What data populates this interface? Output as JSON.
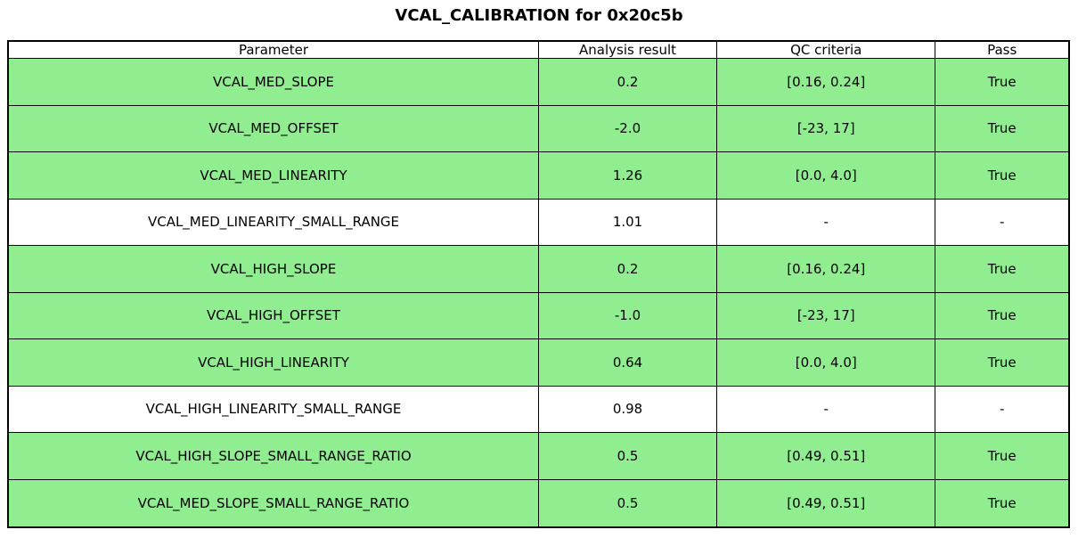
{
  "title": "VCAL_CALIBRATION for 0x20c5b",
  "colors": {
    "pass_row_green": "#90EE90",
    "neutral_row_white": "#FFFFFF",
    "border": "#000000",
    "text": "#000000",
    "background": "#FFFFFF"
  },
  "table": {
    "columns": [
      "Parameter",
      "Analysis result",
      "QC criteria",
      "Pass"
    ],
    "rows": [
      {
        "parameter": "VCAL_MED_SLOPE",
        "analysis_result": "0.2",
        "qc_criteria": "[0.16, 0.24]",
        "pass": "True",
        "highlighted": true
      },
      {
        "parameter": "VCAL_MED_OFFSET",
        "analysis_result": "-2.0",
        "qc_criteria": "[-23, 17]",
        "pass": "True",
        "highlighted": true
      },
      {
        "parameter": "VCAL_MED_LINEARITY",
        "analysis_result": "1.26",
        "qc_criteria": "[0.0, 4.0]",
        "pass": "True",
        "highlighted": true
      },
      {
        "parameter": "VCAL_MED_LINEARITY_SMALL_RANGE",
        "analysis_result": "1.01",
        "qc_criteria": "-",
        "pass": "-",
        "highlighted": false
      },
      {
        "parameter": "VCAL_HIGH_SLOPE",
        "analysis_result": "0.2",
        "qc_criteria": "[0.16, 0.24]",
        "pass": "True",
        "highlighted": true
      },
      {
        "parameter": "VCAL_HIGH_OFFSET",
        "analysis_result": "-1.0",
        "qc_criteria": "[-23, 17]",
        "pass": "True",
        "highlighted": true
      },
      {
        "parameter": "VCAL_HIGH_LINEARITY",
        "analysis_result": "0.64",
        "qc_criteria": "[0.0, 4.0]",
        "pass": "True",
        "highlighted": true
      },
      {
        "parameter": "VCAL_HIGH_LINEARITY_SMALL_RANGE",
        "analysis_result": "0.98",
        "qc_criteria": "-",
        "pass": "-",
        "highlighted": false
      },
      {
        "parameter": "VCAL_HIGH_SLOPE_SMALL_RANGE_RATIO",
        "analysis_result": "0.5",
        "qc_criteria": "[0.49, 0.51]",
        "pass": "True",
        "highlighted": true
      },
      {
        "parameter": "VCAL_MED_SLOPE_SMALL_RANGE_RATIO",
        "analysis_result": "0.5",
        "qc_criteria": "[0.49, 0.51]",
        "pass": "True",
        "highlighted": true
      }
    ]
  },
  "chart_data": {
    "type": "table",
    "title": "VCAL_CALIBRATION for 0x20c5b",
    "columns": [
      "Parameter",
      "Analysis result",
      "QC criteria",
      "Pass"
    ],
    "rows": [
      [
        "VCAL_MED_SLOPE",
        "0.2",
        "[0.16, 0.24]",
        "True"
      ],
      [
        "VCAL_MED_OFFSET",
        "-2.0",
        "[-23, 17]",
        "True"
      ],
      [
        "VCAL_MED_LINEARITY",
        "1.26",
        "[0.0, 4.0]",
        "True"
      ],
      [
        "VCAL_MED_LINEARITY_SMALL_RANGE",
        "1.01",
        "-",
        "-"
      ],
      [
        "VCAL_HIGH_SLOPE",
        "0.2",
        "[0.16, 0.24]",
        "True"
      ],
      [
        "VCAL_HIGH_OFFSET",
        "-1.0",
        "[-23, 17]",
        "True"
      ],
      [
        "VCAL_HIGH_LINEARITY",
        "0.64",
        "[0.0, 4.0]",
        "True"
      ],
      [
        "VCAL_HIGH_LINEARITY_SMALL_RANGE",
        "0.98",
        "-",
        "-"
      ],
      [
        "VCAL_HIGH_SLOPE_SMALL_RANGE_RATIO",
        "0.5",
        "[0.49, 0.51]",
        "True"
      ],
      [
        "VCAL_MED_SLOPE_SMALL_RANGE_RATIO",
        "0.5",
        "[0.49, 0.51]",
        "True"
      ]
    ],
    "row_highlighted": [
      true,
      true,
      true,
      false,
      true,
      true,
      true,
      false,
      true,
      true
    ],
    "layout": {
      "header_background": "#FFFFFF",
      "highlight_background": "#90EE90",
      "grid": true
    }
  }
}
